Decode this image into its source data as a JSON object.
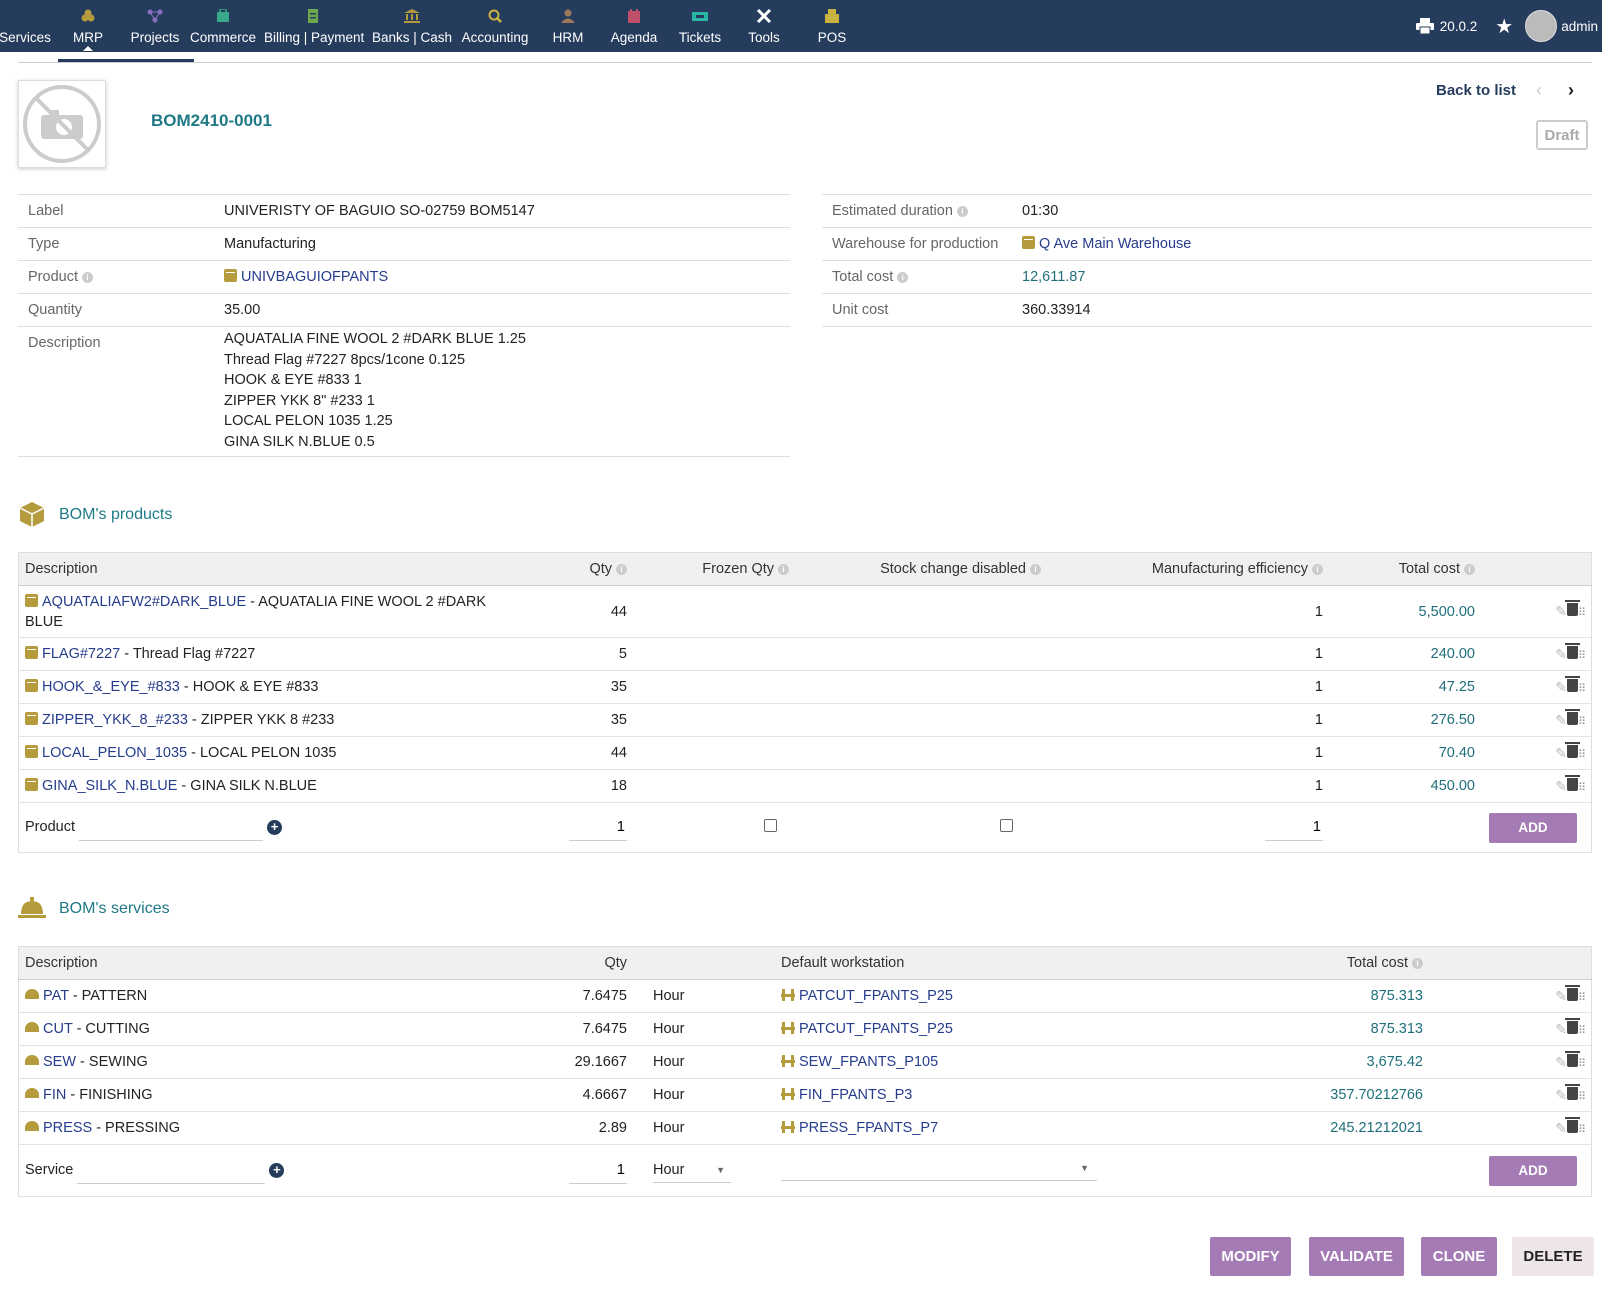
{
  "topnav": {
    "items": [
      {
        "label": "Services",
        "icon": "services-icon"
      },
      {
        "label": "MRP",
        "icon": "mrp-icon"
      },
      {
        "label": "Projects",
        "icon": "projects-icon"
      },
      {
        "label": "Commerce",
        "icon": "commerce-icon"
      },
      {
        "label": "Billing | Payment",
        "icon": "billing-icon"
      },
      {
        "label": "Banks | Cash",
        "icon": "bank-icon"
      },
      {
        "label": "Accounting",
        "icon": "accounting-icon"
      },
      {
        "label": "HRM",
        "icon": "hrm-icon"
      },
      {
        "label": "Agenda",
        "icon": "agenda-icon"
      },
      {
        "label": "Tickets",
        "icon": "tickets-icon"
      },
      {
        "label": "Tools",
        "icon": "tools-icon"
      },
      {
        "label": "POS",
        "icon": "pos-icon"
      }
    ],
    "version": "20.0.2",
    "user": "admin"
  },
  "header": {
    "ref": "BOM2410-0001",
    "back_label": "Back to list",
    "status": "Draft"
  },
  "fields_left": [
    {
      "label": "Label",
      "value": "UNIVERISTY OF BAGUIO SO-02759 BOM5147"
    },
    {
      "label": "Type",
      "value": "Manufacturing"
    },
    {
      "label": "Product",
      "value": "UNIVBAGUIOFPANTS"
    },
    {
      "label": "Quantity",
      "value": "35.00"
    },
    {
      "label": "Description",
      "lines": [
        "AQUATALIA FINE WOOL 2 #DARK BLUE 1.25",
        "Thread Flag #7227 8pcs/1cone 0.125",
        "HOOK & EYE #833 1",
        "ZIPPER YKK 8\" #233 1",
        "LOCAL PELON 1035 1.25",
        "GINA SILK N.BLUE 0.5"
      ]
    }
  ],
  "fields_right": [
    {
      "label": "Estimated duration",
      "value": "01:30"
    },
    {
      "label": "Warehouse for production",
      "value": "Q Ave Main Warehouse"
    },
    {
      "label": "Total cost",
      "value": "12,611.87"
    },
    {
      "label": "Unit cost",
      "value": "360.33914"
    }
  ],
  "products": {
    "title": "BOM's products",
    "headers": {
      "description": "Description",
      "qty": "Qty",
      "frozen_qty": "Frozen Qty",
      "stock_change": "Stock change disabled",
      "efficiency": "Manufacturing efficiency",
      "total_cost": "Total cost"
    },
    "rows": [
      {
        "ref": "AQUATALIAFW2#DARK_BLUE",
        "label": " - AQUATALIA FINE WOOL 2 #DARK",
        "label2": "BLUE",
        "qty": "44",
        "eff": "1",
        "cost": "5,500.00"
      },
      {
        "ref": "FLAG#7227",
        "label": " - Thread Flag #7227",
        "qty": "5",
        "eff": "1",
        "cost": "240.00"
      },
      {
        "ref": "HOOK_&_EYE_#833",
        "label": " - HOOK & EYE #833",
        "qty": "35",
        "eff": "1",
        "cost": "47.25"
      },
      {
        "ref": "ZIPPER_YKK_8_#233",
        "label": " - ZIPPER YKK 8 #233",
        "qty": "35",
        "eff": "1",
        "cost": "276.50"
      },
      {
        "ref": "LOCAL_PELON_1035",
        "label": " - LOCAL PELON 1035",
        "qty": "44",
        "eff": "1",
        "cost": "70.40"
      },
      {
        "ref": "GINA_SILK_N.BLUE",
        "label": " - GINA SILK N.BLUE",
        "qty": "18",
        "eff": "1",
        "cost": "450.00"
      }
    ],
    "add_row": {
      "label": "Product",
      "qty": "1",
      "eff": "1",
      "button": "ADD"
    }
  },
  "services": {
    "title": "BOM's services",
    "headers": {
      "description": "Description",
      "qty": "Qty",
      "workstation": "Default workstation",
      "total_cost": "Total cost"
    },
    "rows": [
      {
        "ref": "PAT",
        "label": " - PATTERN",
        "qty": "7.6475",
        "unit": "Hour",
        "ws": "PATCUT_FPANTS_P25",
        "cost": "875.313"
      },
      {
        "ref": "CUT",
        "label": " - CUTTING",
        "qty": "7.6475",
        "unit": "Hour",
        "ws": "PATCUT_FPANTS_P25",
        "cost": "875.313"
      },
      {
        "ref": "SEW",
        "label": " - SEWING",
        "qty": "29.1667",
        "unit": "Hour",
        "ws": "SEW_FPANTS_P105",
        "cost": "3,675.42"
      },
      {
        "ref": "FIN",
        "label": " - FINISHING",
        "qty": "4.6667",
        "unit": "Hour",
        "ws": "FIN_FPANTS_P3",
        "cost": "357.70212766"
      },
      {
        "ref": "PRESS",
        "label": " - PRESSING",
        "qty": "2.89",
        "unit": "Hour",
        "ws": "PRESS_FPANTS_P7",
        "cost": "245.21212021"
      }
    ],
    "add_row": {
      "label": "Service",
      "qty": "1",
      "unit": "Hour",
      "button": "ADD"
    }
  },
  "actions": {
    "modify": "MODIFY",
    "validate": "VALIDATE",
    "clone": "CLONE",
    "delete": "DELETE"
  }
}
